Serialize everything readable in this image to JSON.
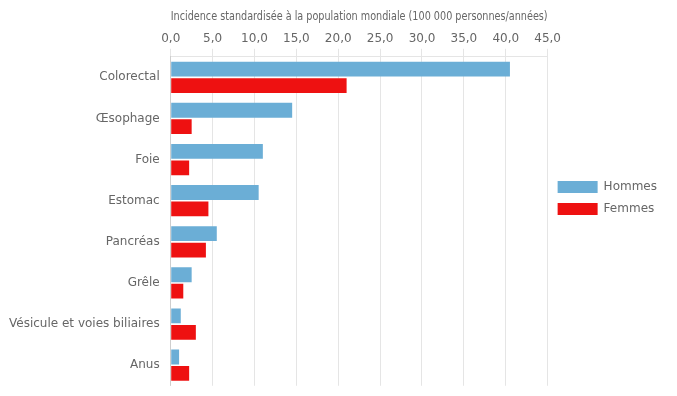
{
  "chart_data": {
    "type": "bar",
    "orientation": "horizontal",
    "xlabel": "Incidence standardisée à la population mondiale (100 000 personnes/années)",
    "categories": [
      "Colorectal",
      "Œsophage",
      "Foie",
      "Estomac",
      "Pancréas",
      "Grêle",
      "Vésicule et voies biliaires",
      "Anus"
    ],
    "series": [
      {
        "name": "Hommes",
        "color": "#6baed6",
        "values": [
          40.5,
          14.5,
          11.0,
          10.5,
          5.5,
          2.5,
          1.2,
          1.0
        ]
      },
      {
        "name": "Femmes",
        "color": "#EE1111",
        "values": [
          21.0,
          2.5,
          2.2,
          4.5,
          4.2,
          1.5,
          3.0,
          2.2
        ]
      }
    ],
    "xlim": [
      0,
      45
    ],
    "xticks": [
      {
        "value": 0,
        "label": "0,0"
      },
      {
        "value": 5,
        "label": "5,0"
      },
      {
        "value": 10,
        "label": "10,0"
      },
      {
        "value": 15,
        "label": "15,0"
      },
      {
        "value": 20,
        "label": "20,0"
      },
      {
        "value": 25,
        "label": "25,0"
      },
      {
        "value": 30,
        "label": "30,0"
      },
      {
        "value": 35,
        "label": "35,0"
      },
      {
        "value": 40,
        "label": "40,0"
      },
      {
        "value": 45,
        "label": "45,0"
      }
    ],
    "grid": true,
    "legend": "right"
  }
}
